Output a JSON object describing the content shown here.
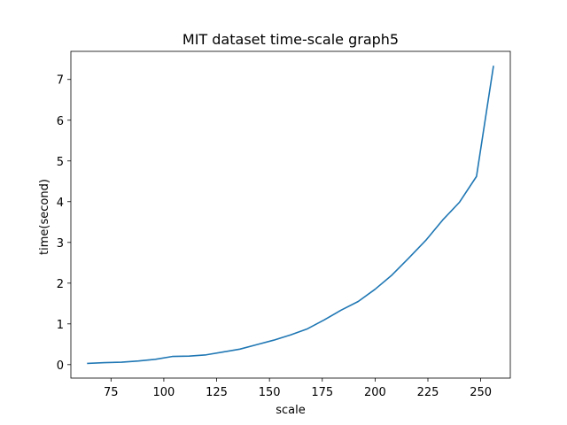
{
  "chart_data": {
    "type": "line",
    "title": "MIT dataset time-scale graph5",
    "xlabel": "scale",
    "ylabel": "time(second)",
    "xlim": [
      56,
      264
    ],
    "ylim": [
      -0.33,
      7.69
    ],
    "xticks": [
      75,
      100,
      125,
      150,
      175,
      200,
      225,
      250
    ],
    "yticks": [
      0,
      1,
      2,
      3,
      4,
      5,
      6,
      7
    ],
    "grid": false,
    "series": [
      {
        "color": "#1f77b4",
        "x": [
          64,
          72,
          80,
          88,
          96,
          104,
          112,
          120,
          128,
          136,
          144,
          152,
          160,
          168,
          176,
          184,
          192,
          200,
          208,
          216,
          224,
          232,
          240,
          248,
          256
        ],
        "y": [
          0.03,
          0.05,
          0.06,
          0.09,
          0.13,
          0.2,
          0.21,
          0.24,
          0.31,
          0.38,
          0.49,
          0.6,
          0.73,
          0.88,
          1.1,
          1.34,
          1.55,
          1.85,
          2.2,
          2.62,
          3.05,
          3.55,
          3.99,
          4.62,
          7.32
        ]
      }
    ]
  }
}
